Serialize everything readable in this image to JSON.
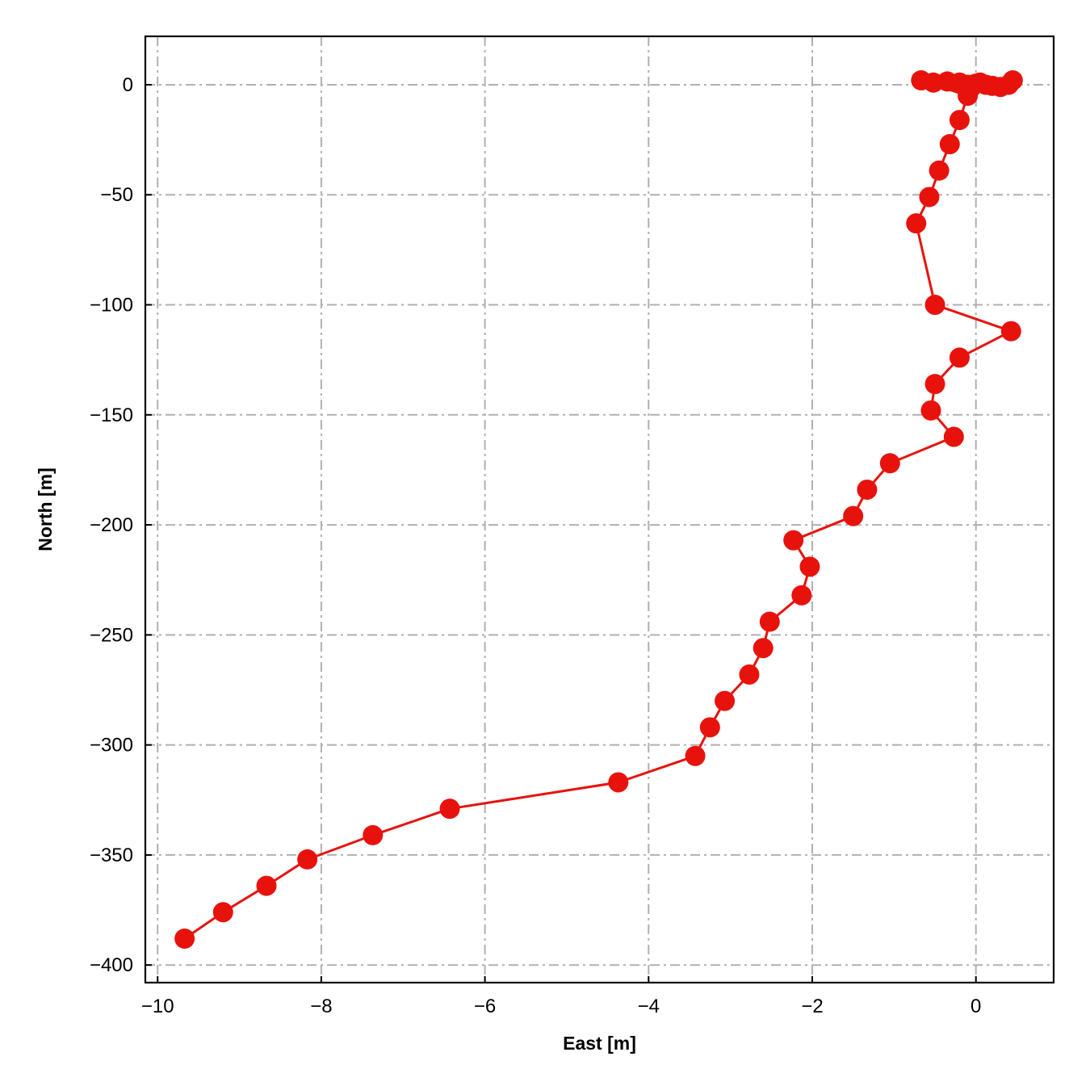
{
  "chart_data": {
    "type": "line",
    "title": "",
    "xlabel": "East [m]",
    "ylabel": "North [m]",
    "xlim": [
      -10.15,
      0.95
    ],
    "ylim": [
      -408,
      22
    ],
    "xticks": [
      -10,
      -8,
      -6,
      -4,
      -2,
      0
    ],
    "xtick_labels": [
      "−10",
      "−8",
      "−6",
      "−4",
      "−2",
      "0"
    ],
    "yticks": [
      0,
      -50,
      -100,
      -150,
      -200,
      -250,
      -300,
      -350,
      -400
    ],
    "ytick_labels": [
      "0",
      "−50",
      "−100",
      "−150",
      "−200",
      "−250",
      "−300",
      "−350",
      "−400"
    ],
    "grid": true,
    "grid_style": "dashdot",
    "colors": {
      "series": "#e8120c",
      "grid": "#b0b0b0",
      "axes": "#000000"
    },
    "series": [
      {
        "x": [
          0.45,
          0.4,
          0.3,
          0.2,
          0.12,
          0.05,
          0.0,
          -0.05,
          -0.1,
          -0.2,
          -0.35,
          -0.52,
          -0.67,
          -0.1,
          -0.2,
          -0.32,
          -0.45,
          -0.57,
          -0.73,
          -0.5,
          0.43,
          -0.2,
          -0.5,
          -0.55,
          -0.27,
          -1.05,
          -1.33,
          -1.5,
          -2.23,
          -2.03,
          -2.13,
          -2.52,
          -2.6,
          -2.77,
          -3.07,
          -3.25,
          -3.43,
          -4.37,
          -6.43,
          -7.37,
          -8.17,
          -8.67,
          -9.2,
          -9.67
        ],
        "y": [
          2,
          0,
          -1,
          -0.5,
          0,
          1,
          0.5,
          -1,
          0,
          1,
          1.5,
          1,
          2,
          -5,
          -16,
          -27,
          -39,
          -51,
          -63,
          -100,
          -112,
          -124,
          -136,
          -148,
          -160,
          -172,
          -184,
          -196,
          -207,
          -219,
          -232,
          -244,
          -256,
          -268,
          -280,
          -292,
          -305,
          -317,
          -329,
          -341,
          -352,
          -364,
          -376,
          -388
        ]
      }
    ]
  }
}
